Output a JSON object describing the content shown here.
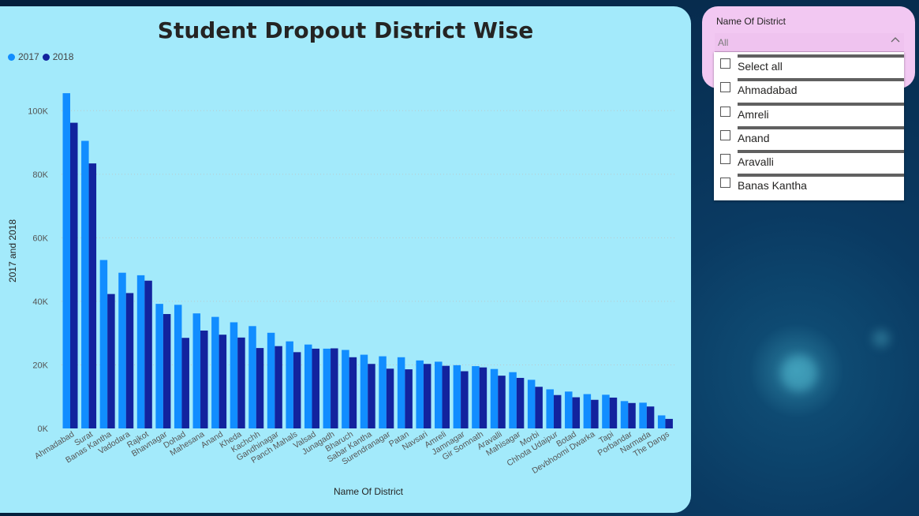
{
  "chart_card": {
    "title": "Student Dropout District Wise",
    "x_axis_title": "Name Of District",
    "y_axis_title": "2017 and 2018"
  },
  "legend": [
    {
      "label": "2017",
      "color": "#118dff"
    },
    {
      "label": "2018",
      "color": "#12239e"
    }
  ],
  "chart_data": {
    "type": "bar",
    "title": "Student Dropout District Wise",
    "xlabel": "Name Of District",
    "ylabel": "2017 and 2018",
    "ylim": [
      0,
      110000
    ],
    "yticks": [
      0,
      20000,
      40000,
      60000,
      80000,
      100000
    ],
    "ytick_labels": [
      "0K",
      "20K",
      "40K",
      "60K",
      "80K",
      "100K"
    ],
    "grid": true,
    "legend_position": "top-left",
    "categories": [
      "Ahmadabad",
      "Surat",
      "Banas Kantha",
      "Vadodara",
      "Rajkot",
      "Bhavnagar",
      "Dohad",
      "Mahesana",
      "Anand",
      "Kheda",
      "Kachchh",
      "Gandhinagar",
      "Panch Mahals",
      "Valsad",
      "Junagadh",
      "Bharuch",
      "Sabar Kantha",
      "Surendranagar",
      "Patan",
      "Navsari",
      "Amreli",
      "Jamnagar",
      "Gir Somnath",
      "Aravalli",
      "Mahisagar",
      "Morbi",
      "Chhota Udaipur",
      "Botad",
      "Devbhoomi Dwarka",
      "Tapi",
      "Porbandar",
      "Narmada",
      "The Dangs"
    ],
    "series": [
      {
        "name": "2017",
        "color": "#118dff",
        "values": [
          105500,
          90500,
          53000,
          49000,
          48200,
          39200,
          38900,
          36200,
          35100,
          33400,
          32200,
          30100,
          27400,
          26400,
          25100,
          24700,
          23200,
          22700,
          22400,
          21400,
          21000,
          19900,
          19600,
          18700,
          17700,
          15300,
          12300,
          11600,
          10800,
          10600,
          8600,
          8100,
          4100
        ]
      },
      {
        "name": "2018",
        "color": "#12239e",
        "values": [
          96200,
          83400,
          42300,
          42600,
          46500,
          36000,
          28500,
          30800,
          29500,
          28600,
          25300,
          25900,
          24000,
          25100,
          25200,
          22400,
          20300,
          18800,
          18600,
          20300,
          19700,
          18000,
          19200,
          16600,
          15900,
          13100,
          10500,
          9800,
          9000,
          9700,
          8000,
          6900,
          3000
        ]
      }
    ]
  },
  "slicer": {
    "title": "Name Of District",
    "selected_value": "All",
    "chevron_icon": "chevron-up-icon",
    "options": [
      "Select all",
      "Ahmadabad",
      "Amreli",
      "Anand",
      "Aravalli",
      "Banas Kantha"
    ]
  }
}
